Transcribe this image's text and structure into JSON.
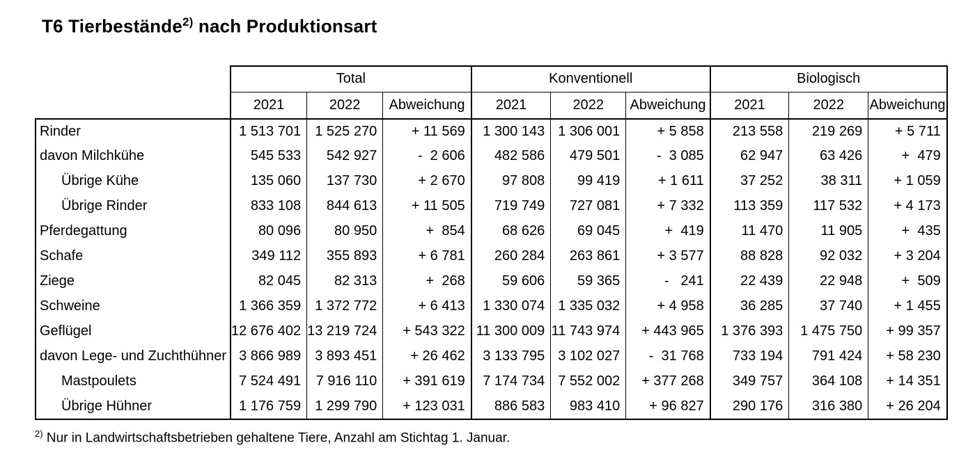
{
  "title": {
    "text": "T6 Tierbestände",
    "superscript": "2)",
    "suffix": " nach Produktionsart"
  },
  "table": {
    "group_headers": [
      "Total",
      "Konventionell",
      "Biologisch"
    ],
    "sub_headers": [
      "2021",
      "2022",
      "Abweichung"
    ],
    "rows": [
      {
        "label": "Rinder",
        "indent": 0,
        "values": [
          "1 513 701",
          "1 525 270",
          "+ 11 569",
          "1 300 143",
          "1 306 001",
          "+ 5 858",
          "213 558",
          "219 269",
          "+ 5 711"
        ]
      },
      {
        "label": "davon Milchkühe",
        "indent": 0,
        "values": [
          "545 533",
          "542 927",
          "-  2 606",
          "482 586",
          "479 501",
          "-  3 085",
          "62 947",
          "63 426",
          "+  479"
        ]
      },
      {
        "label": "Übrige Kühe",
        "indent": 1,
        "values": [
          "135 060",
          "137 730",
          "+ 2 670",
          "97 808",
          "99 419",
          "+ 1 611",
          "37 252",
          "38 311",
          "+ 1 059"
        ]
      },
      {
        "label": "Übrige Rinder",
        "indent": 1,
        "values": [
          "833 108",
          "844 613",
          "+ 11 505",
          "719 749",
          "727 081",
          "+ 7 332",
          "113 359",
          "117 532",
          "+ 4 173"
        ]
      },
      {
        "label": "Pferdegattung",
        "indent": 0,
        "values": [
          "80 096",
          "80 950",
          "+  854",
          "68 626",
          "69 045",
          "+  419",
          "11 470",
          "11 905",
          "+  435"
        ]
      },
      {
        "label": "Schafe",
        "indent": 0,
        "values": [
          "349 112",
          "355 893",
          "+ 6 781",
          "260 284",
          "263 861",
          "+ 3 577",
          "88 828",
          "92 032",
          "+ 3 204"
        ]
      },
      {
        "label": "Ziege",
        "indent": 0,
        "values": [
          "82 045",
          "82 313",
          "+  268",
          "59 606",
          "59 365",
          "-   241",
          "22 439",
          "22 948",
          "+  509"
        ]
      },
      {
        "label": "Schweine",
        "indent": 0,
        "values": [
          "1 366 359",
          "1 372 772",
          "+ 6 413",
          "1 330 074",
          "1 335 032",
          "+ 4 958",
          "36 285",
          "37 740",
          "+ 1 455"
        ]
      },
      {
        "label": "Geflügel",
        "indent": 0,
        "values": [
          "12 676 402",
          "13 219 724",
          "+ 543 322",
          "11 300 009",
          "11 743 974",
          "+ 443 965",
          "1 376 393",
          "1 475 750",
          "+ 99 357"
        ]
      },
      {
        "label": "davon Lege- und Zuchthühner",
        "indent": 0,
        "values": [
          "3 866 989",
          "3 893 451",
          "+ 26 462",
          "3 133 795",
          "3 102 027",
          "-  31 768",
          "733 194",
          "791 424",
          "+ 58 230"
        ]
      },
      {
        "label": "Mastpoulets",
        "indent": 1,
        "values": [
          "7 524 491",
          "7 916 110",
          "+ 391 619",
          "7 174 734",
          "7 552 002",
          "+ 377 268",
          "349 757",
          "364 108",
          "+ 14 351"
        ]
      },
      {
        "label": "Übrige Hühner",
        "indent": 1,
        "values": [
          "1 176 759",
          "1 299 790",
          "+ 123 031",
          "886 583",
          "983 410",
          "+ 96 827",
          "290 176",
          "316 380",
          "+ 26 204"
        ]
      }
    ]
  },
  "footnote": {
    "superscript": "2)",
    "text": " Nur in Landwirtschaftsbetrieben gehaltene Tiere, Anzahl am Stichtag 1. Januar."
  },
  "colors": {
    "text": "#000000",
    "border": "#000000",
    "background": "#ffffff"
  }
}
